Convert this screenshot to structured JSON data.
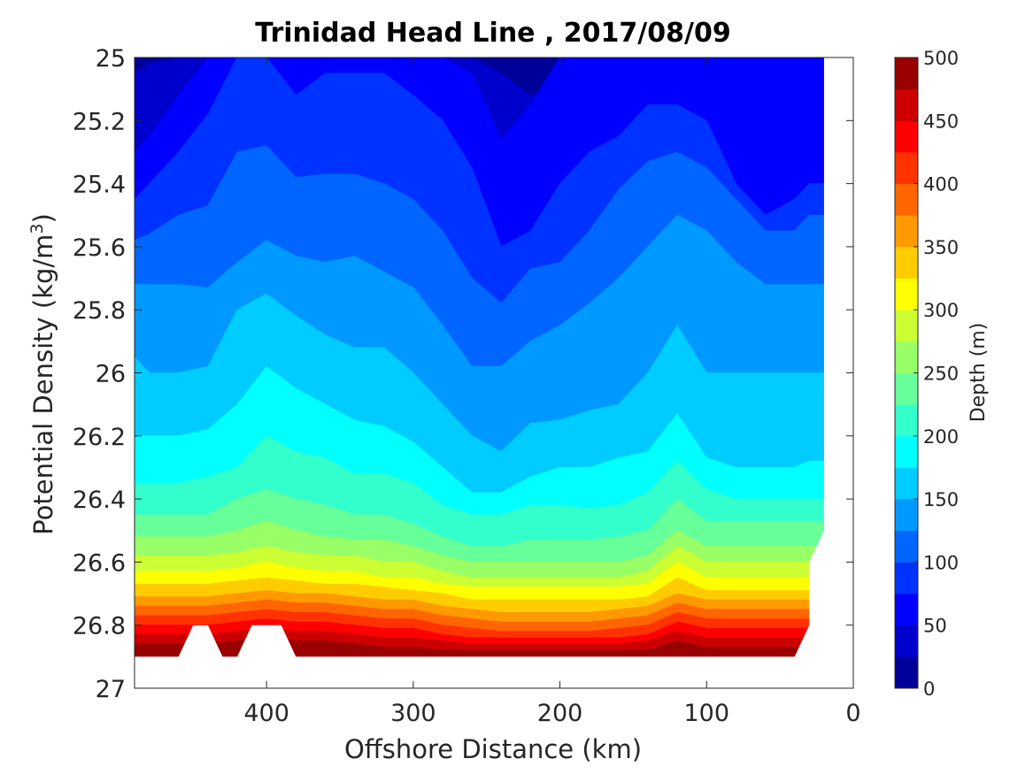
{
  "chart_data": {
    "type": "contourf",
    "title": "Trinidad Head Line , 2017/08/09",
    "xlabel": "Offshore Distance (km)",
    "ylabel": "Potential Density (kg/m",
    "ylabel_sup": "3",
    "ylabel_close": ")",
    "xlim": [
      490,
      0
    ],
    "x_reversed": true,
    "ylim": [
      25,
      27
    ],
    "y_reversed": true,
    "xticks": [
      "400",
      "300",
      "200",
      "100",
      "0"
    ],
    "xtick_values": [
      400,
      300,
      200,
      100,
      0
    ],
    "yticks": [
      "25",
      "25.2",
      "25.4",
      "25.6",
      "25.8",
      "26",
      "26.2",
      "26.4",
      "26.6",
      "26.8",
      "27"
    ],
    "ytick_values": [
      25,
      25.2,
      25.4,
      25.6,
      25.8,
      26,
      26.2,
      26.4,
      26.6,
      26.8,
      27
    ],
    "colorbar": {
      "label": "Depth (m)",
      "min": 0,
      "max": 500,
      "step": 25,
      "ticks": [
        "0",
        "50",
        "100",
        "150",
        "200",
        "250",
        "300",
        "350",
        "400",
        "450",
        "500"
      ],
      "tick_values": [
        0,
        50,
        100,
        150,
        200,
        250,
        300,
        350,
        400,
        450,
        500
      ],
      "colormap": "jet"
    },
    "x": [
      490,
      480,
      460,
      440,
      420,
      400,
      380,
      360,
      340,
      320,
      300,
      280,
      260,
      240,
      220,
      200,
      180,
      160,
      140,
      120,
      100,
      80,
      60,
      40,
      30,
      20
    ],
    "isopycnals": [
      {
        "depth": 25,
        "sigma": [
          25.05,
          25.02,
          25.0,
          25.0,
          25.0,
          25.0,
          25.0,
          25.0,
          25.0,
          25.0,
          25.0,
          25.0,
          25.0,
          25.05,
          25.12,
          25.1,
          25.0,
          25.0,
          25.0,
          25.0,
          25.0,
          25.0,
          25.0,
          25.0,
          25.0,
          25.0
        ]
      },
      {
        "depth": 50,
        "sigma": [
          25.3,
          25.25,
          25.12,
          25.0,
          25.0,
          25.0,
          25.0,
          25.0,
          25.0,
          25.0,
          25.0,
          25.0,
          25.05,
          25.26,
          25.15,
          25.0,
          25.0,
          25.0,
          25.0,
          25.0,
          25.0,
          25.0,
          25.0,
          25.0,
          25.0,
          25.0
        ]
      },
      {
        "depth": 75,
        "sigma": [
          25.45,
          25.4,
          25.3,
          25.18,
          25.0,
          25.0,
          25.12,
          25.05,
          25.05,
          25.05,
          25.12,
          25.2,
          25.35,
          25.6,
          25.55,
          25.4,
          25.3,
          25.25,
          25.15,
          25.15,
          25.2,
          25.4,
          25.5,
          25.45,
          25.4,
          25.4
        ]
      },
      {
        "depth": 100,
        "sigma": [
          25.58,
          25.56,
          25.5,
          25.47,
          25.3,
          25.28,
          25.38,
          25.37,
          25.37,
          25.4,
          25.45,
          25.55,
          25.7,
          25.78,
          25.67,
          25.65,
          25.55,
          25.42,
          25.33,
          25.3,
          25.35,
          25.45,
          25.55,
          25.55,
          25.5,
          25.5
        ]
      },
      {
        "depth": 125,
        "sigma": [
          25.72,
          25.72,
          25.72,
          25.73,
          25.65,
          25.58,
          25.63,
          25.65,
          25.63,
          25.68,
          25.73,
          25.85,
          25.98,
          25.98,
          25.9,
          25.85,
          25.78,
          25.7,
          25.6,
          25.5,
          25.55,
          25.65,
          25.72,
          25.72,
          25.72,
          25.72
        ]
      },
      {
        "depth": 150,
        "sigma": [
          25.95,
          26.0,
          26.0,
          25.98,
          25.8,
          25.75,
          25.82,
          25.88,
          25.92,
          25.92,
          26.0,
          26.1,
          26.2,
          26.25,
          26.16,
          26.15,
          26.12,
          26.1,
          26.0,
          25.85,
          26.0,
          26.0,
          26.0,
          26.0,
          26.0,
          26.0
        ]
      },
      {
        "depth": 175,
        "sigma": [
          26.2,
          26.2,
          26.2,
          26.18,
          26.1,
          25.98,
          26.05,
          26.1,
          26.15,
          26.17,
          26.22,
          26.3,
          26.38,
          26.38,
          26.33,
          26.3,
          26.3,
          26.27,
          26.25,
          26.13,
          26.27,
          26.3,
          26.3,
          26.3,
          26.28,
          26.28
        ]
      },
      {
        "depth": 200,
        "sigma": [
          26.35,
          26.35,
          26.35,
          26.33,
          26.3,
          26.2,
          26.25,
          26.27,
          26.32,
          26.32,
          26.35,
          26.42,
          26.45,
          26.45,
          26.42,
          26.42,
          26.43,
          26.42,
          26.38,
          26.28,
          26.37,
          26.4,
          26.4,
          26.4,
          26.4,
          26.4
        ]
      },
      {
        "depth": 225,
        "sigma": [
          26.45,
          26.45,
          26.45,
          26.45,
          26.4,
          26.37,
          26.4,
          26.42,
          26.45,
          26.45,
          26.48,
          26.52,
          26.55,
          26.55,
          26.53,
          26.53,
          26.53,
          26.52,
          26.5,
          26.4,
          26.47,
          26.47,
          26.47,
          26.47,
          26.47,
          26.47
        ]
      },
      {
        "depth": 250,
        "sigma": [
          26.52,
          26.52,
          26.52,
          26.52,
          26.5,
          26.47,
          26.5,
          26.52,
          26.53,
          26.53,
          26.55,
          26.58,
          26.6,
          26.6,
          26.6,
          26.6,
          26.6,
          26.6,
          26.58,
          26.5,
          26.55,
          26.55,
          26.55,
          26.55,
          26.55,
          26.55
        ]
      },
      {
        "depth": 275,
        "sigma": [
          26.58,
          26.58,
          26.58,
          26.58,
          26.57,
          26.55,
          26.57,
          26.58,
          26.58,
          26.6,
          26.6,
          26.63,
          26.65,
          26.65,
          26.65,
          26.65,
          26.65,
          26.65,
          26.63,
          26.55,
          26.6,
          26.6,
          26.6,
          26.6,
          26.6,
          26.6
        ]
      },
      {
        "depth": 300,
        "sigma": [
          26.63,
          26.63,
          26.63,
          26.63,
          26.62,
          26.6,
          26.62,
          26.63,
          26.63,
          26.65,
          26.65,
          26.67,
          26.68,
          26.68,
          26.68,
          26.68,
          26.68,
          26.68,
          26.67,
          26.6,
          26.65,
          26.65,
          26.65,
          26.65,
          26.65,
          26.65
        ]
      },
      {
        "depth": 325,
        "sigma": [
          26.67,
          26.67,
          26.67,
          26.67,
          26.66,
          26.65,
          26.66,
          26.67,
          26.67,
          26.68,
          26.69,
          26.7,
          26.72,
          26.72,
          26.72,
          26.72,
          26.72,
          26.72,
          26.71,
          26.65,
          26.69,
          26.69,
          26.69,
          26.69,
          26.69,
          26.69
        ]
      },
      {
        "depth": 350,
        "sigma": [
          26.71,
          26.71,
          26.71,
          26.71,
          26.7,
          26.69,
          26.7,
          26.7,
          26.71,
          26.72,
          26.72,
          26.74,
          26.75,
          26.76,
          26.76,
          26.76,
          26.76,
          26.75,
          26.74,
          26.7,
          26.72,
          26.72,
          26.72,
          26.72,
          26.72,
          26.72
        ]
      },
      {
        "depth": 375,
        "sigma": [
          26.74,
          26.74,
          26.74,
          26.74,
          26.73,
          26.72,
          26.73,
          26.73,
          26.74,
          26.75,
          26.75,
          26.77,
          26.78,
          26.79,
          26.79,
          26.79,
          26.79,
          26.78,
          26.77,
          26.73,
          26.75,
          26.75,
          26.75,
          26.75,
          26.75,
          26.75
        ]
      },
      {
        "depth": 400,
        "sigma": [
          26.77,
          26.77,
          26.77,
          26.77,
          26.76,
          26.75,
          26.76,
          26.76,
          26.77,
          26.78,
          26.78,
          26.8,
          26.81,
          26.82,
          26.82,
          26.82,
          26.82,
          26.81,
          26.8,
          26.76,
          26.78,
          26.78,
          26.78,
          26.78,
          26.78,
          26.78
        ]
      },
      {
        "depth": 425,
        "sigma": [
          26.8,
          26.8,
          26.8,
          26.8,
          26.79,
          26.78,
          26.79,
          26.79,
          26.8,
          26.81,
          26.81,
          26.83,
          26.84,
          26.84,
          26.84,
          26.84,
          26.84,
          26.84,
          26.83,
          26.79,
          26.81,
          26.81,
          26.81,
          26.81,
          26.81,
          26.81
        ]
      },
      {
        "depth": 450,
        "sigma": [
          26.83,
          26.83,
          26.83,
          26.83,
          26.82,
          26.81,
          26.82,
          26.82,
          26.83,
          26.84,
          26.84,
          26.85,
          26.86,
          26.86,
          26.86,
          26.86,
          26.86,
          26.86,
          26.85,
          26.82,
          26.84,
          26.84,
          26.84,
          26.84,
          26.84,
          26.84
        ]
      },
      {
        "depth": 475,
        "sigma": [
          26.86,
          26.86,
          26.86,
          26.86,
          26.85,
          26.84,
          26.85,
          26.85,
          26.86,
          26.87,
          26.87,
          26.88,
          26.88,
          26.88,
          26.88,
          26.88,
          26.88,
          26.88,
          26.88,
          26.85,
          26.87,
          26.87,
          26.87,
          26.87,
          26.87,
          26.87
        ]
      }
    ],
    "data_extent": {
      "bottom_sigma": 26.9,
      "right_edge": [
        {
          "x": 20,
          "sigma": 25.0
        },
        {
          "x": 20,
          "sigma": 26.5
        },
        {
          "x": 30,
          "sigma": 26.6
        },
        {
          "x": 30,
          "sigma": 26.8
        },
        {
          "x": 40,
          "sigma": 26.9
        }
      ],
      "bottom_notches": [
        [
          {
            "x": 460,
            "sigma": 26.9
          },
          {
            "x": 450,
            "sigma": 26.8
          },
          {
            "x": 440,
            "sigma": 26.8
          },
          {
            "x": 430,
            "sigma": 26.9
          }
        ],
        [
          {
            "x": 420,
            "sigma": 26.9
          },
          {
            "x": 410,
            "sigma": 26.8
          },
          {
            "x": 390,
            "sigma": 26.8
          },
          {
            "x": 380,
            "sigma": 26.9
          }
        ]
      ]
    }
  }
}
